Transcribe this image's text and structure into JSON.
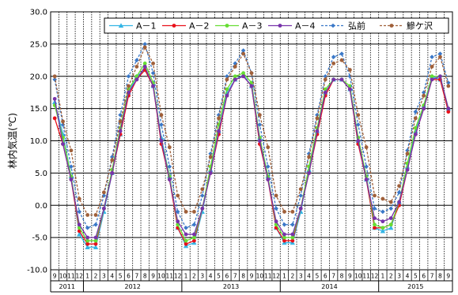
{
  "chart_data": {
    "type": "line",
    "title": "",
    "ylabel": "林内気温(℃)",
    "xlabel": "",
    "ylim": [
      -10.0,
      30.0
    ],
    "yticks": [
      "-10.0",
      "-5.0",
      "0.0",
      "5.0",
      "10.0",
      "15.0",
      "20.0",
      "25.0",
      "30.0"
    ],
    "month_labels": [
      "9",
      "10",
      "11",
      "12",
      "1",
      "2",
      "3",
      "4",
      "5",
      "6",
      "7",
      "8",
      "9",
      "10",
      "11",
      "12",
      "1",
      "2",
      "3",
      "4",
      "5",
      "6",
      "7",
      "8",
      "9",
      "10",
      "11",
      "12",
      "1",
      "2",
      "3",
      "4",
      "5",
      "6",
      "7",
      "8",
      "9",
      "10",
      "11",
      "12",
      "1",
      "2",
      "3",
      "4",
      "5",
      "6",
      "7",
      "8",
      "9"
    ],
    "years": [
      {
        "label": "2011",
        "start": 0,
        "end": 4
      },
      {
        "label": "2012",
        "start": 4,
        "end": 16
      },
      {
        "label": "2013",
        "start": 16,
        "end": 28
      },
      {
        "label": "2014",
        "start": 28,
        "end": 40
      },
      {
        "label": "2015",
        "start": 40,
        "end": 49
      }
    ],
    "grid": true,
    "legend_position": "top-right",
    "series": [
      {
        "name": "A－1",
        "color": "#33b5e5",
        "marker": "triangle",
        "dash": "solid",
        "values": [
          16.0,
          11.0,
          4.5,
          -4.5,
          -6.5,
          -6.5,
          -1.0,
          5.0,
          11.0,
          17.5,
          20.0,
          21.0,
          18.5,
          10.5,
          4.5,
          -3.5,
          -6.3,
          -5.8,
          -1.0,
          5.5,
          11.5,
          17.5,
          19.5,
          20.2,
          18.5,
          10.5,
          4.5,
          -3.5,
          -5.8,
          -5.8,
          -1.0,
          5.5,
          11.5,
          17.5,
          19.5,
          19.5,
          18.0,
          10.0,
          4.0,
          -3.5,
          -4.0,
          -3.5,
          0.5,
          6.0,
          11.5,
          15.5,
          20.0,
          19.5,
          15.0
        ]
      },
      {
        "name": "A－2",
        "color": "#e8111a",
        "marker": "circle",
        "dash": "solid",
        "values": [
          13.5,
          9.5,
          4.0,
          -4.0,
          -6.0,
          -6.0,
          -0.5,
          5.0,
          11.0,
          17.0,
          19.5,
          21.0,
          18.5,
          9.5,
          4.0,
          -3.5,
          -6.0,
          -5.5,
          -0.5,
          5.0,
          11.0,
          17.0,
          19.5,
          20.0,
          18.5,
          9.5,
          4.0,
          -3.5,
          -5.5,
          -5.5,
          -0.5,
          5.0,
          11.0,
          17.0,
          19.5,
          19.5,
          18.0,
          9.5,
          4.0,
          -3.5,
          -3.5,
          -3.0,
          0.0,
          5.5,
          11.0,
          15.0,
          19.5,
          19.5,
          14.5
        ]
      },
      {
        "name": "A－3",
        "color": "#66dd33",
        "marker": "circle",
        "dash": "solid",
        "values": [
          15.5,
          10.5,
          4.5,
          -3.5,
          -5.5,
          -5.5,
          -0.5,
          5.5,
          12.0,
          18.0,
          20.0,
          22.0,
          19.0,
          10.0,
          4.5,
          -3.0,
          -5.5,
          -5.0,
          -0.5,
          6.0,
          12.5,
          18.0,
          20.0,
          20.5,
          19.0,
          10.5,
          4.5,
          -3.0,
          -5.0,
          -5.0,
          -0.5,
          6.0,
          12.0,
          18.0,
          19.5,
          19.5,
          18.5,
          10.5,
          4.5,
          -3.0,
          -3.5,
          -3.0,
          0.5,
          6.5,
          12.0,
          15.5,
          20.0,
          20.0,
          15.0
        ]
      },
      {
        "name": "A－4",
        "color": "#7733aa",
        "marker": "circle",
        "dash": "solid",
        "values": [
          16.5,
          9.5,
          4.0,
          -3.0,
          -5.0,
          -5.0,
          -0.5,
          5.0,
          11.5,
          17.5,
          19.5,
          21.5,
          18.5,
          10.0,
          4.0,
          -2.5,
          -4.5,
          -4.5,
          -0.5,
          5.0,
          11.5,
          17.0,
          19.5,
          20.0,
          18.5,
          10.0,
          4.0,
          -2.5,
          -4.5,
          -4.5,
          -0.5,
          5.0,
          11.5,
          17.5,
          19.5,
          19.5,
          18.0,
          10.0,
          4.0,
          -2.0,
          -2.5,
          -2.0,
          0.5,
          5.5,
          11.0,
          15.0,
          19.5,
          20.0,
          15.0
        ]
      },
      {
        "name": "弘前",
        "color": "#3a78c8",
        "marker": "diamond",
        "dash": "dashed",
        "values": [
          19.5,
          12.5,
          6.0,
          -1.0,
          -3.5,
          -3.0,
          1.5,
          7.5,
          14.0,
          20.0,
          22.5,
          25.0,
          20.5,
          12.5,
          6.0,
          -1.0,
          -3.5,
          -3.0,
          1.5,
          8.0,
          14.0,
          20.0,
          22.0,
          24.0,
          20.5,
          12.5,
          6.0,
          -0.5,
          -3.0,
          -3.0,
          1.5,
          8.0,
          14.0,
          20.0,
          23.0,
          23.5,
          20.0,
          12.5,
          6.0,
          -0.5,
          -1.0,
          -0.5,
          2.0,
          8.5,
          14.5,
          17.5,
          23.0,
          23.5,
          19.0
        ]
      },
      {
        "name": "鰺ケ沢",
        "color": "#a0603a",
        "marker": "circle",
        "dash": "dashed",
        "values": [
          20.0,
          13.0,
          8.5,
          1.0,
          -1.5,
          -1.5,
          2.0,
          7.0,
          13.0,
          18.5,
          21.5,
          24.5,
          22.0,
          14.0,
          9.0,
          1.5,
          -1.0,
          -1.0,
          2.5,
          7.5,
          13.5,
          19.5,
          21.5,
          23.5,
          20.5,
          14.0,
          9.0,
          1.5,
          -1.0,
          -1.0,
          2.5,
          7.5,
          13.5,
          19.5,
          22.0,
          22.5,
          21.0,
          14.0,
          9.0,
          1.5,
          1.0,
          0.5,
          3.0,
          8.0,
          13.5,
          17.0,
          21.5,
          23.0,
          18.5
        ]
      }
    ]
  }
}
